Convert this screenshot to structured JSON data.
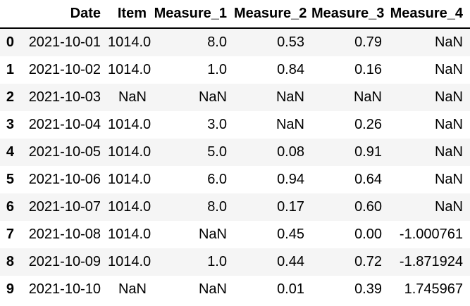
{
  "table": {
    "corner_label": "",
    "columns": [
      "Date",
      "Item",
      "Measure_1",
      "Measure_2",
      "Measure_3",
      "Measure_4"
    ],
    "rows": [
      {
        "index": "0",
        "cells": [
          "2021-10-01",
          "1014.0",
          "8.0",
          "0.53",
          "0.79",
          "NaN"
        ]
      },
      {
        "index": "1",
        "cells": [
          "2021-10-02",
          "1014.0",
          "1.0",
          "0.84",
          "0.16",
          "NaN"
        ]
      },
      {
        "index": "2",
        "cells": [
          "2021-10-03",
          "NaN",
          "NaN",
          "NaN",
          "NaN",
          "NaN"
        ]
      },
      {
        "index": "3",
        "cells": [
          "2021-10-04",
          "1014.0",
          "3.0",
          "NaN",
          "0.26",
          "NaN"
        ]
      },
      {
        "index": "4",
        "cells": [
          "2021-10-05",
          "1014.0",
          "5.0",
          "0.08",
          "0.91",
          "NaN"
        ]
      },
      {
        "index": "5",
        "cells": [
          "2021-10-06",
          "1014.0",
          "6.0",
          "0.94",
          "0.64",
          "NaN"
        ]
      },
      {
        "index": "6",
        "cells": [
          "2021-10-07",
          "1014.0",
          "8.0",
          "0.17",
          "0.60",
          "NaN"
        ]
      },
      {
        "index": "7",
        "cells": [
          "2021-10-08",
          "1014.0",
          "NaN",
          "0.45",
          "0.00",
          "-1.000761"
        ]
      },
      {
        "index": "8",
        "cells": [
          "2021-10-09",
          "1014.0",
          "1.0",
          "0.44",
          "0.72",
          "-1.871924"
        ]
      },
      {
        "index": "9",
        "cells": [
          "2021-10-10",
          "NaN",
          "NaN",
          "0.01",
          "0.39",
          "1.745967"
        ]
      }
    ],
    "colors": {
      "stripe": "#f5f5f5",
      "header_border": "#000000",
      "text": "#000000",
      "background": "#ffffff"
    }
  }
}
